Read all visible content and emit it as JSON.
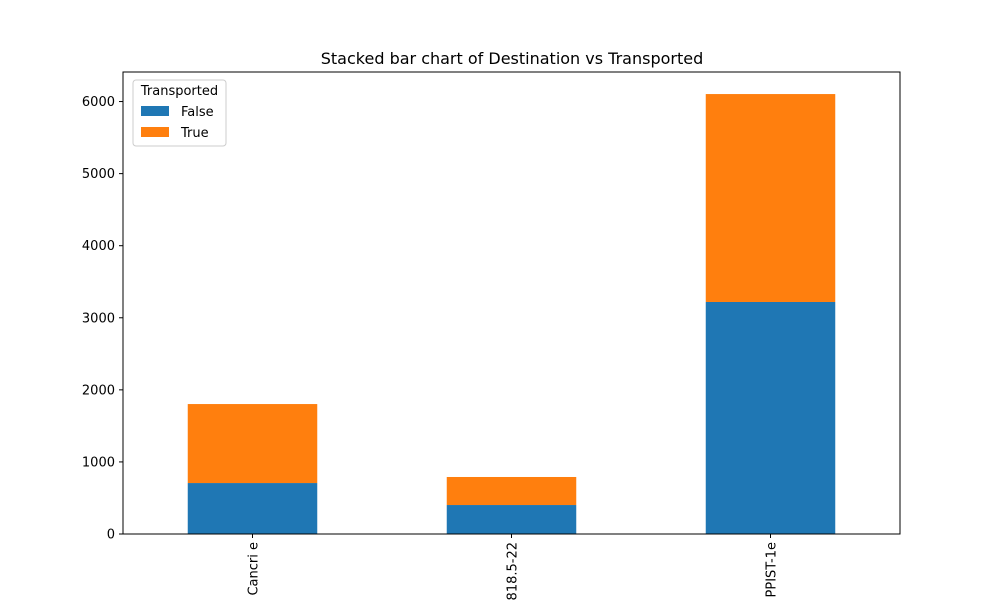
{
  "chart_data": {
    "type": "stacked-bar",
    "title": "Stacked bar chart of Destination vs Transported",
    "categories": [
      "Cancri e",
      "818.5-22",
      "PPIST-1e"
    ],
    "series": [
      {
        "name": "False",
        "color": "#1f77b4",
        "values": [
          707,
          402,
          3219
        ]
      },
      {
        "name": "True",
        "color": "#ff7f0e",
        "values": [
          1096,
          389,
          2885
        ]
      }
    ],
    "legend_title": "Transported",
    "legend_position": "upper-left",
    "ylim": [
      0,
      6410
    ],
    "yticks": [
      0,
      1000,
      2000,
      3000,
      4000,
      5000,
      6000
    ]
  }
}
